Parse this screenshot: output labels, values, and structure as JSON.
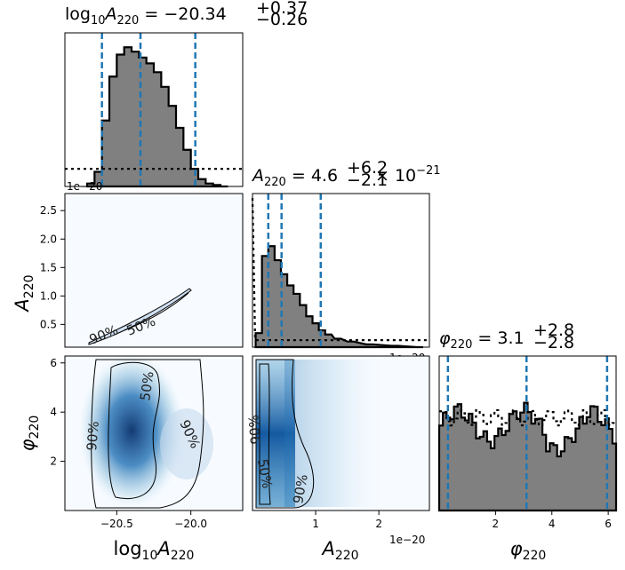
{
  "chart_data": [
    {
      "panel": "log10A220-marginal",
      "type": "histogram",
      "title": {
        "base": "log",
        "sub": "10",
        "var": "A",
        "vsub": "220",
        "eq": " = −20.34",
        "sup": "+0.37",
        "low": "−0.26"
      },
      "xlim": [
        -20.85,
        -19.65
      ],
      "quantiles": [
        -20.6,
        -20.34,
        -19.97
      ],
      "posterior": {
        "x": [
          -20.7,
          -20.65,
          -20.6,
          -20.55,
          -20.5,
          -20.45,
          -20.4,
          -20.35,
          -20.3,
          -20.25,
          -20.2,
          -20.15,
          -20.1,
          -20.05,
          -20.0,
          -19.95,
          -19.9,
          -19.85,
          -19.8
        ],
        "density": [
          0.02,
          0.1,
          0.45,
          0.75,
          0.9,
          0.95,
          0.92,
          0.88,
          0.84,
          0.78,
          0.68,
          0.55,
          0.4,
          0.25,
          0.12,
          0.05,
          0.02,
          0.01,
          0.0
        ]
      },
      "prior_level": 0.12,
      "offset_text": "1e−20"
    },
    {
      "panel": "A220-marginal",
      "type": "histogram",
      "title": {
        "var": "A",
        "vsub": "220",
        "eq": " = 4.6",
        "sup": "+6.2",
        "low": "−2.1",
        "tail": " × 10",
        "tailsup": "−21"
      },
      "xlim": [
        0.0,
        2.8
      ],
      "xticks": [
        1,
        2
      ],
      "xtick_labels": [
        "1",
        "2"
      ],
      "quantiles": [
        0.25,
        0.46,
        1.08
      ],
      "posterior": {
        "x": [
          0.05,
          0.15,
          0.25,
          0.35,
          0.45,
          0.55,
          0.65,
          0.75,
          0.85,
          0.95,
          1.05,
          1.15,
          1.3,
          1.5,
          1.8,
          2.2,
          2.6
        ],
        "density": [
          0.1,
          0.65,
          0.72,
          0.62,
          0.52,
          0.44,
          0.38,
          0.3,
          0.22,
          0.17,
          0.12,
          0.09,
          0.06,
          0.04,
          0.02,
          0.01,
          0.0
        ]
      },
      "prior_level": 0.05,
      "offset_text": "1e−20",
      "xlabel": {
        "var": "A",
        "sub": "220"
      }
    },
    {
      "panel": "phi220-marginal",
      "type": "histogram",
      "title": {
        "var": "φ",
        "vsub": "220",
        "eq": " = 3.1",
        "sup": "+2.8",
        "low": "−2.8"
      },
      "xlim": [
        0.0,
        6.28
      ],
      "xticks": [
        2,
        4,
        6
      ],
      "xtick_labels": [
        "2",
        "4",
        "6"
      ],
      "quantiles": [
        0.31,
        3.1,
        5.96
      ],
      "posterior_level": 0.55,
      "prior_level": 0.6,
      "xlabel": {
        "var": "φ",
        "sub": "220"
      }
    },
    {
      "panel": "A220-vs-log10A220",
      "type": "scatter",
      "ylim": [
        0.1,
        2.8
      ],
      "yticks": [
        0.5,
        1.0,
        1.5,
        2.0,
        2.5
      ],
      "ytick_labels": [
        "0.5",
        "1.0",
        "1.5",
        "2.0",
        "2.5"
      ],
      "contour_labels": [
        "90%",
        "50%"
      ],
      "ylabel": {
        "var": "A",
        "sub": "220"
      }
    },
    {
      "panel": "phi220-vs-log10A220",
      "type": "heatmap",
      "xticks": [
        -20.5,
        -20.0
      ],
      "xtick_labels": [
        "−20.5",
        "−20.0"
      ],
      "yticks": [
        2,
        4,
        6
      ],
      "ytick_labels": [
        "2",
        "4",
        "6"
      ],
      "contour_labels": [
        "90%",
        "50%",
        "90%"
      ],
      "xlabel": {
        "base": "log",
        "sub": "10",
        "var": "A",
        "vsub": "220"
      },
      "ylabel": {
        "var": "φ",
        "sub": "220"
      }
    },
    {
      "panel": "phi220-vs-A220",
      "type": "heatmap",
      "contour_labels": [
        "90%",
        "50%",
        "90%"
      ]
    }
  ],
  "colors": {
    "quantile": "#1f77b4",
    "hist_fill": "#808080",
    "hist_edge": "#000000",
    "density": "#08519c"
  }
}
